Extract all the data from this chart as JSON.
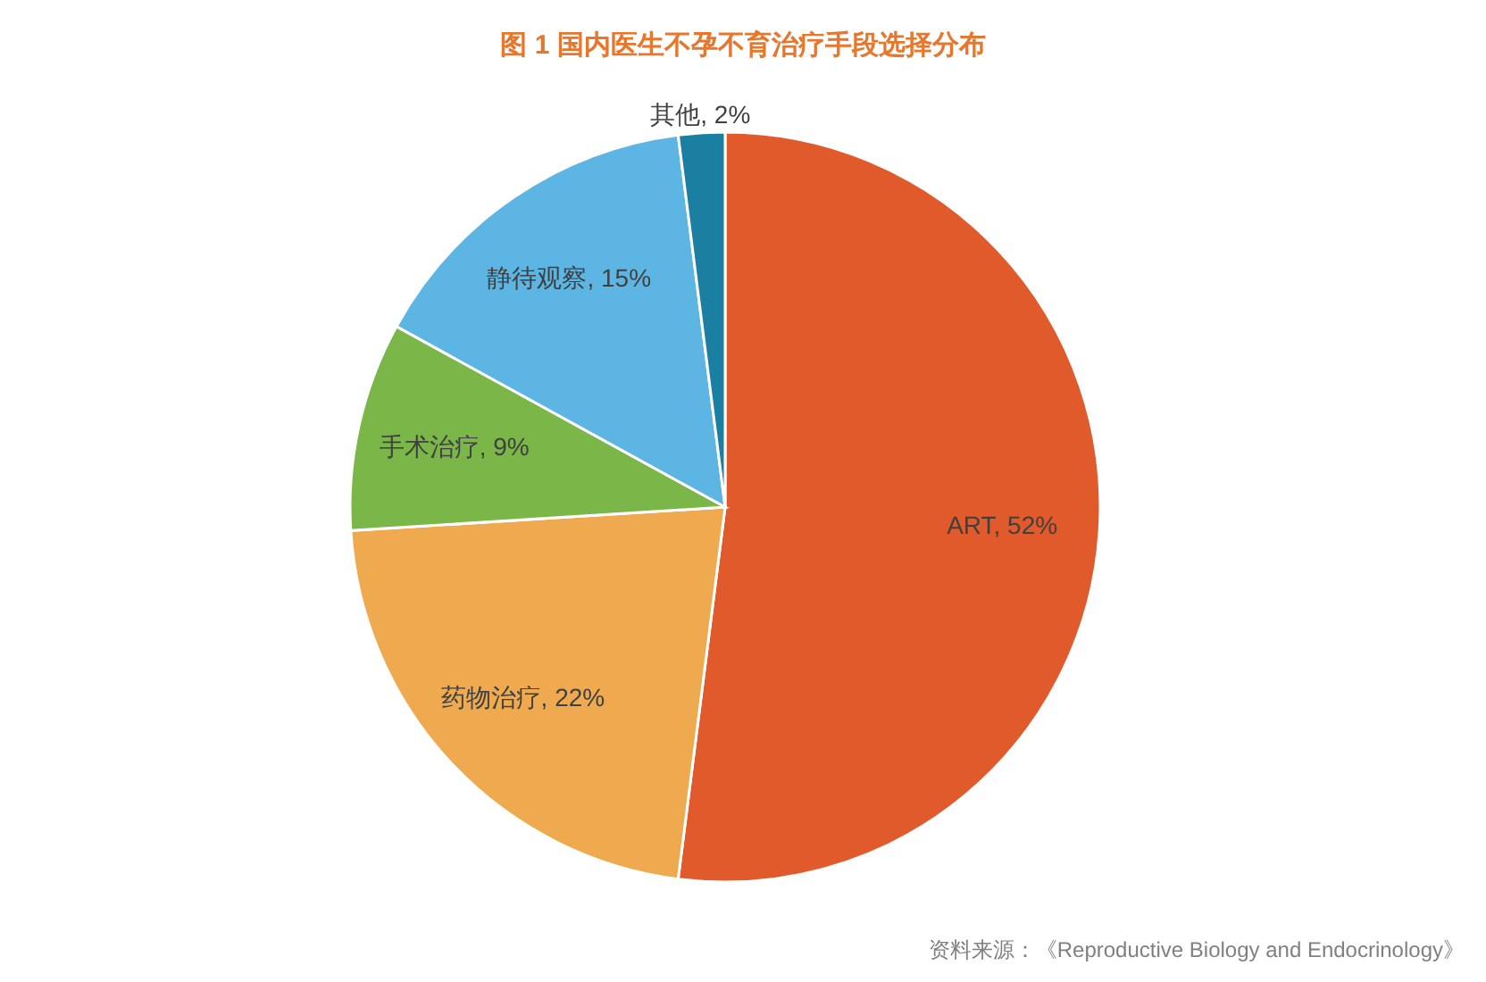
{
  "chart_data": {
    "type": "pie",
    "title": "图 1 国内医生不孕不育治疗手段选择分布",
    "categories": [
      "ART",
      "药物治疗",
      "手术治疗",
      "静待观察",
      "其他"
    ],
    "values": [
      52,
      22,
      9,
      15,
      2
    ],
    "value_labels": [
      "52%",
      "22%",
      "9%",
      "15%",
      "2%"
    ],
    "colors": [
      "#e05a2b",
      "#efaa4f",
      "#7ab648",
      "#5cb5e3",
      "#1b7fa1"
    ],
    "annotations": [
      "资料来源：《Reproductive Biology and Endocrinology》"
    ]
  }
}
